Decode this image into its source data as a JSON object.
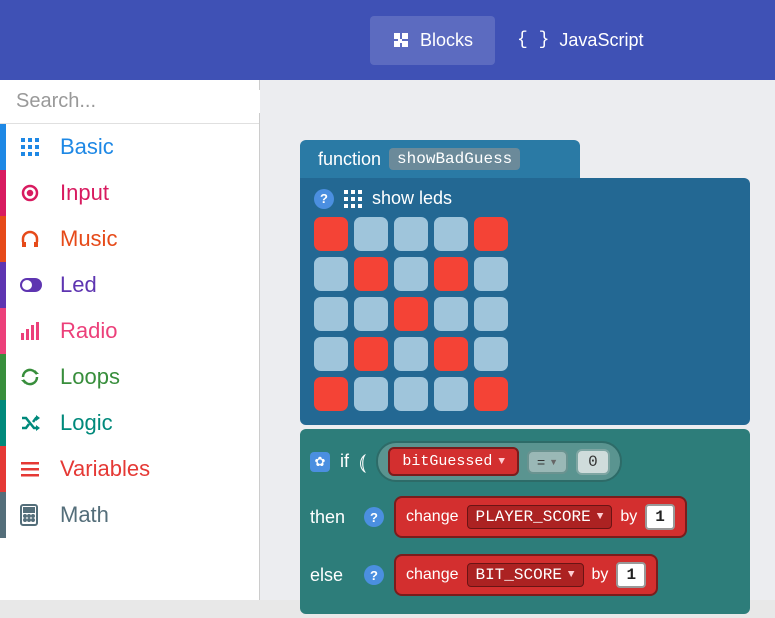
{
  "header": {
    "blocks_label": "Blocks",
    "js_label": "JavaScript",
    "active": "blocks"
  },
  "sidebar": {
    "search_placeholder": "Search...",
    "categories": [
      {
        "label": "Basic",
        "color": "#1e88e5",
        "icon": "grid"
      },
      {
        "label": "Input",
        "color": "#d81b60",
        "icon": "target"
      },
      {
        "label": "Music",
        "color": "#e64a19",
        "icon": "headphones"
      },
      {
        "label": "Led",
        "color": "#5e35b1",
        "icon": "toggle"
      },
      {
        "label": "Radio",
        "color": "#ec407a",
        "icon": "bars"
      },
      {
        "label": "Loops",
        "color": "#388e3c",
        "icon": "refresh"
      },
      {
        "label": "Logic",
        "color": "#00897b",
        "icon": "shuffle"
      },
      {
        "label": "Variables",
        "color": "#e53935",
        "icon": "lines"
      },
      {
        "label": "Math",
        "color": "#546e7a",
        "icon": "calc"
      }
    ]
  },
  "workspace": {
    "function": {
      "keyword": "function",
      "name": "showBadGuess",
      "header_color": "#2a7aa5"
    },
    "show_leds": {
      "label": "show leds",
      "block_color": "#236893",
      "led_on_color": "#f44336",
      "led_off_color": "#9fc5db",
      "grid": [
        [
          1,
          0,
          0,
          0,
          1
        ],
        [
          0,
          1,
          0,
          1,
          0
        ],
        [
          0,
          0,
          1,
          0,
          0
        ],
        [
          0,
          1,
          0,
          1,
          0
        ],
        [
          1,
          0,
          0,
          0,
          1
        ]
      ]
    },
    "if_block": {
      "color": "#2d7d7a",
      "if_kw": "if",
      "then_kw": "then",
      "else_kw": "else",
      "condition": {
        "variable": "bitGuessed",
        "operator": "=",
        "value": "0",
        "var_color": "#d32f2f"
      },
      "then_stmt": {
        "hint": "?",
        "keyword": "change",
        "variable": "PLAYER_SCORE",
        "by_kw": "by",
        "value": "1",
        "color": "#d32f2f"
      },
      "else_stmt": {
        "hint": "?",
        "keyword": "change",
        "variable": "BIT_SCORE",
        "by_kw": "by",
        "value": "1",
        "color": "#d32f2f"
      }
    }
  }
}
